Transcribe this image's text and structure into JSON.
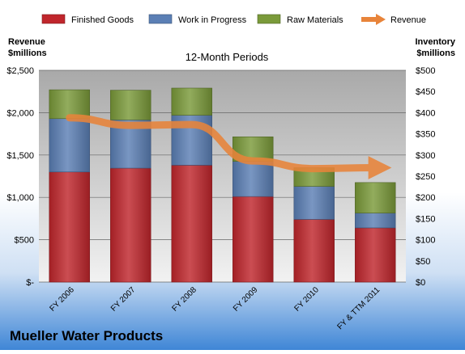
{
  "chart_data": {
    "type": "bar",
    "stacked": true,
    "title": "12-Month Periods",
    "company": "Mueller Water Products",
    "left_axis_label": [
      "Revenue",
      "$millions"
    ],
    "right_axis_label": [
      "Inventory",
      "$millions"
    ],
    "categories": [
      "FY 2006",
      "FY 2007",
      "FY 2008",
      "FY 2009",
      "FY 2010",
      "FY & TTM 2011"
    ],
    "series": [
      {
        "name": "Finished Goods",
        "axis": "right",
        "color": "#c0262c",
        "values": [
          260,
          269,
          276,
          202,
          148,
          128
        ]
      },
      {
        "name": "Work in Progress",
        "axis": "right",
        "color": "#5b7fb5",
        "values": [
          126,
          114,
          118,
          83,
          78,
          35
        ]
      },
      {
        "name": "Raw Materials",
        "axis": "right",
        "color": "#7a9a3a",
        "values": [
          68,
          70,
          64,
          58,
          44,
          72
        ]
      }
    ],
    "line_series": {
      "name": "Revenue",
      "axis": "left",
      "color": "#e8843a",
      "values": [
        1940,
        1850,
        1860,
        1430,
        1340,
        1350
      ]
    },
    "left_axis": {
      "min": 0,
      "max": 2500,
      "step": 500,
      "ticks": [
        "$-",
        "$500",
        "$1,000",
        "$1,500",
        "$2,000",
        "$2,500"
      ]
    },
    "right_axis": {
      "min": 0,
      "max": 500,
      "step": 50,
      "ticks": [
        "$0",
        "$50",
        "$100",
        "$150",
        "$200",
        "$250",
        "$300",
        "$350",
        "$400",
        "$450",
        "$500"
      ]
    },
    "grid": true,
    "legend_position": "top"
  }
}
